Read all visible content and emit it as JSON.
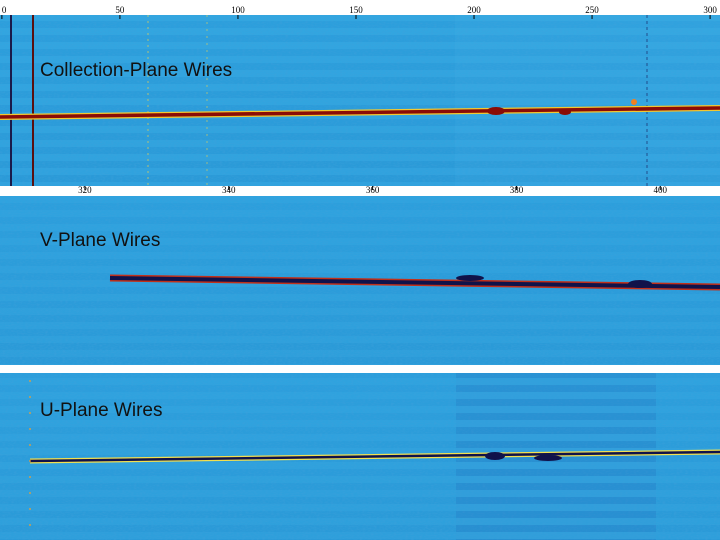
{
  "panels": [
    {
      "label": "Collection-Plane Wires",
      "xlim": [
        -0.8,
        304.2
      ],
      "ticks": [
        0,
        50,
        100,
        150,
        200,
        250,
        300
      ]
    },
    {
      "label": "V-Plane Wires",
      "xlim": [
        308.2,
        408.3
      ],
      "ticks": [
        320,
        340,
        360,
        380,
        400
      ]
    },
    {
      "label": "U-Plane Wires"
    }
  ]
}
